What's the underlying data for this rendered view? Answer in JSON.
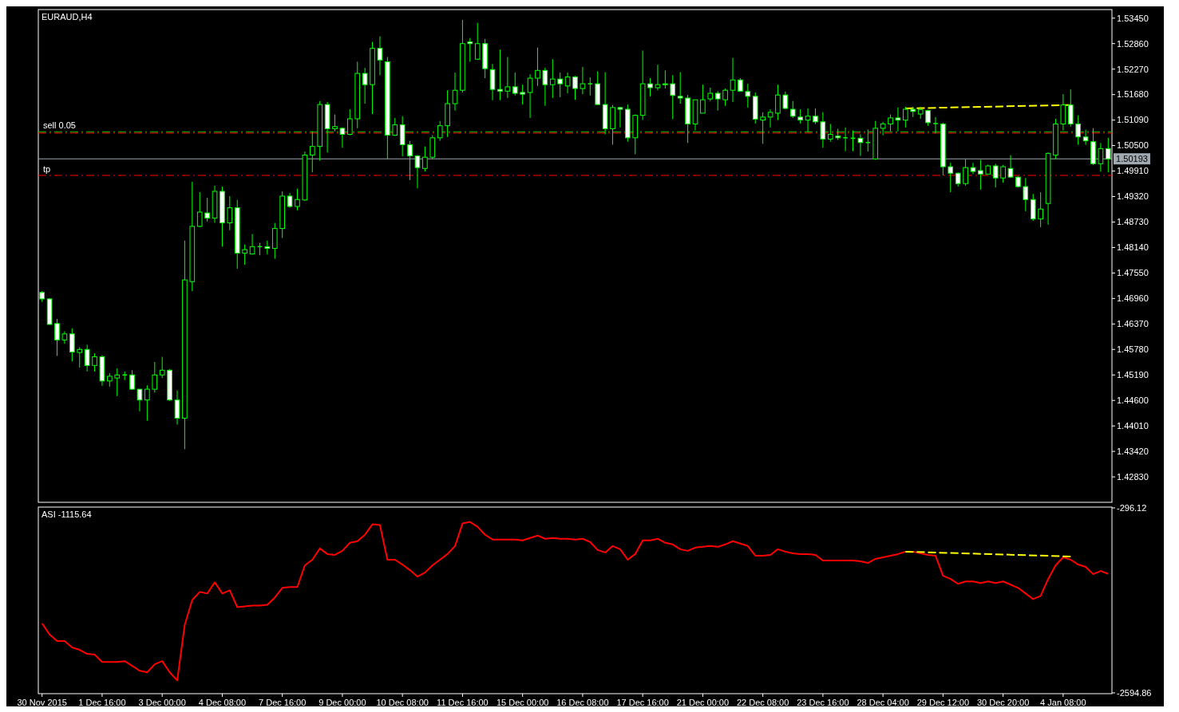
{
  "chart_data": [
    {
      "type": "candlestick",
      "title": "EURAUD,H4",
      "color": "#00ff00",
      "tick_labels": "y",
      "categories": [
        null,
        null,
        null,
        null,
        null,
        null,
        null,
        null,
        null,
        null,
        null,
        null,
        null,
        null,
        null,
        null,
        null,
        null,
        null,
        null,
        null,
        null,
        null,
        null,
        null,
        null,
        null,
        null,
        null,
        null,
        null,
        null,
        null,
        null,
        null,
        null,
        null,
        null,
        null,
        null,
        null,
        null,
        null,
        null,
        null,
        null,
        null,
        null,
        null,
        null,
        null,
        null,
        null,
        null,
        null,
        null,
        null,
        null,
        null,
        null,
        null,
        null,
        null,
        null,
        null,
        null,
        null,
        null,
        null,
        null,
        null,
        null,
        null,
        null,
        null,
        null,
        null,
        null,
        null,
        null,
        null,
        null,
        null,
        null,
        null,
        null,
        null,
        null,
        null,
        null,
        null,
        null,
        null,
        null,
        null,
        null,
        null,
        null,
        null,
        null,
        null,
        null,
        null,
        null,
        null,
        null,
        null,
        null,
        null,
        null,
        null,
        null,
        null,
        null,
        null,
        null,
        null,
        null,
        null,
        null,
        null,
        null,
        null,
        null,
        null,
        null,
        null,
        null,
        null,
        null,
        null,
        null,
        null,
        null,
        null,
        null,
        null,
        null,
        null,
        null,
        null,
        null,
        null
      ],
      "ohlc": [
        [
          1.471,
          1.4713,
          1.4688,
          1.4695
        ],
        [
          1.4695,
          1.4697,
          1.4635,
          1.4636
        ],
        [
          1.4638,
          1.4649,
          1.4563,
          1.46
        ],
        [
          1.46,
          1.462,
          1.4591,
          1.4614
        ],
        [
          1.4614,
          1.4627,
          1.455,
          1.4572
        ],
        [
          1.4571,
          1.4583,
          1.4536,
          1.4578
        ],
        [
          1.4578,
          1.4589,
          1.4527,
          1.4541
        ],
        [
          1.4541,
          1.4569,
          1.4527,
          1.4561
        ],
        [
          1.4561,
          1.4565,
          1.4494,
          1.4505
        ],
        [
          1.4505,
          1.4523,
          1.4492,
          1.4516
        ],
        [
          1.4512,
          1.4534,
          1.447,
          1.4519
        ],
        [
          1.4519,
          1.4527,
          1.4507,
          1.4519
        ],
        [
          1.4519,
          1.453,
          1.4485,
          1.4486
        ],
        [
          1.4486,
          1.4486,
          1.4435,
          1.4461
        ],
        [
          1.4461,
          1.4495,
          1.4413,
          1.4486
        ],
        [
          1.4486,
          1.4549,
          1.4478,
          1.4519
        ],
        [
          1.4519,
          1.4561,
          1.4512,
          1.453
        ],
        [
          1.453,
          1.4532,
          1.4459,
          1.4461
        ],
        [
          1.4461,
          1.4483,
          1.4404,
          1.4419
        ],
        [
          1.4419,
          1.483,
          1.4347,
          1.4739
        ],
        [
          1.4735,
          1.4966,
          1.4713,
          1.4863
        ],
        [
          1.4863,
          1.4942,
          1.4861,
          1.4896
        ],
        [
          1.4894,
          1.4929,
          1.4874,
          1.4882
        ],
        [
          1.4882,
          1.4957,
          1.4871,
          1.4944
        ],
        [
          1.4944,
          1.4955,
          1.4816,
          1.4871
        ],
        [
          1.4871,
          1.4933,
          1.4854,
          1.4906
        ],
        [
          1.4906,
          1.4924,
          1.4765,
          1.4801
        ],
        [
          1.4801,
          1.4821,
          1.4774,
          1.4809
        ],
        [
          1.4799,
          1.4845,
          1.4798,
          1.4816
        ],
        [
          1.4816,
          1.4825,
          1.4796,
          1.4816
        ],
        [
          1.4816,
          1.483,
          1.4798,
          1.4812
        ],
        [
          1.4812,
          1.4871,
          1.4788,
          1.4858
        ],
        [
          1.4858,
          1.4944,
          1.4836,
          1.4933
        ],
        [
          1.4933,
          1.494,
          1.4906,
          1.4909
        ],
        [
          1.4909,
          1.495,
          1.49,
          1.4925
        ],
        [
          1.4924,
          1.5036,
          1.4922,
          1.5028
        ],
        [
          1.5028,
          1.5083,
          1.4988,
          1.5048
        ],
        [
          1.5048,
          1.5153,
          1.5015,
          1.5145
        ],
        [
          1.5145,
          1.5151,
          1.5034,
          1.5089
        ],
        [
          1.5089,
          1.5122,
          1.5083,
          1.5094
        ],
        [
          1.509,
          1.5092,
          1.5045,
          1.5076
        ],
        [
          1.5076,
          1.5134,
          1.5074,
          1.5112
        ],
        [
          1.5112,
          1.5244,
          1.509,
          1.5217
        ],
        [
          1.5217,
          1.523,
          1.5147,
          1.5191
        ],
        [
          1.5191,
          1.529,
          1.5123,
          1.5275
        ],
        [
          1.5275,
          1.5303,
          1.5213,
          1.5248
        ],
        [
          1.5244,
          1.5255,
          1.5019,
          1.5074
        ],
        [
          1.5074,
          1.5114,
          1.5072,
          1.5098
        ],
        [
          1.5098,
          1.5118,
          1.5025,
          1.5052
        ],
        [
          1.5052,
          1.5061,
          1.497,
          1.5026
        ],
        [
          1.5026,
          1.5028,
          1.4951,
          1.4999
        ],
        [
          1.4997,
          1.5048,
          1.499,
          1.5023
        ],
        [
          1.5023,
          1.5074,
          1.5019,
          1.5068
        ],
        [
          1.5068,
          1.5107,
          1.5061,
          1.5096
        ],
        [
          1.5096,
          1.5178,
          1.507,
          1.5147
        ],
        [
          1.5147,
          1.5219,
          1.5131,
          1.5178
        ],
        [
          1.5178,
          1.5341,
          1.5173,
          1.5286
        ],
        [
          1.529,
          1.5299,
          1.5244,
          1.5286
        ],
        [
          1.525,
          1.5334,
          1.5248,
          1.5286
        ],
        [
          1.5286,
          1.5297,
          1.5206,
          1.5228
        ],
        [
          1.5226,
          1.5239,
          1.5155,
          1.518
        ],
        [
          1.518,
          1.5272,
          1.5155,
          1.5176
        ],
        [
          1.5176,
          1.5255,
          1.516,
          1.5186
        ],
        [
          1.5186,
          1.5219,
          1.5166,
          1.5171
        ],
        [
          1.5173,
          1.5191,
          1.5145,
          1.5169
        ],
        [
          1.5173,
          1.5215,
          1.5114,
          1.5206
        ],
        [
          1.5206,
          1.5277,
          1.5188,
          1.5224
        ],
        [
          1.5224,
          1.523,
          1.5142,
          1.5191
        ],
        [
          1.5191,
          1.525,
          1.516,
          1.5204
        ],
        [
          1.5204,
          1.5219,
          1.5162,
          1.5193
        ],
        [
          1.5188,
          1.5219,
          1.5171,
          1.5209
        ],
        [
          1.5209,
          1.5211,
          1.5156,
          1.5182
        ],
        [
          1.5182,
          1.5232,
          1.5169,
          1.5193
        ],
        [
          1.5193,
          1.5208,
          1.5166,
          1.5193
        ],
        [
          1.5193,
          1.5222,
          1.5144,
          1.5145
        ],
        [
          1.5145,
          1.522,
          1.5076,
          1.5089
        ],
        [
          1.5089,
          1.5144,
          1.5052,
          1.5138
        ],
        [
          1.5138,
          1.514,
          1.5092,
          1.5134
        ],
        [
          1.5134,
          1.5145,
          1.5059,
          1.5068
        ],
        [
          1.5068,
          1.5122,
          1.503,
          1.512
        ],
        [
          1.512,
          1.527,
          1.5109,
          1.5193
        ],
        [
          1.5193,
          1.5206,
          1.5164,
          1.5184
        ],
        [
          1.5184,
          1.5237,
          1.5178,
          1.5191
        ],
        [
          1.5193,
          1.5224,
          1.5182,
          1.5191
        ],
        [
          1.5193,
          1.5213,
          1.5111,
          1.5166
        ],
        [
          1.5164,
          1.522,
          1.5147,
          1.516
        ],
        [
          1.516,
          1.5167,
          1.5056,
          1.51
        ],
        [
          1.51,
          1.5156,
          1.5085,
          1.5156
        ],
        [
          1.5125,
          1.5191,
          1.5125,
          1.5156
        ],
        [
          1.5158,
          1.5184,
          1.5153,
          1.5171
        ],
        [
          1.5171,
          1.5176,
          1.5131,
          1.5158
        ],
        [
          1.5156,
          1.5182,
          1.5142,
          1.5178
        ],
        [
          1.5178,
          1.5253,
          1.5151,
          1.5202
        ],
        [
          1.5202,
          1.5206,
          1.5175,
          1.5176
        ],
        [
          1.5175,
          1.5193,
          1.5138,
          1.5164
        ],
        [
          1.5164,
          1.5173,
          1.5101,
          1.5111
        ],
        [
          1.5109,
          1.5127,
          1.5054,
          1.5116
        ],
        [
          1.5116,
          1.5134,
          1.5092,
          1.5127
        ],
        [
          1.5125,
          1.5191,
          1.5109,
          1.5167
        ],
        [
          1.5167,
          1.5175,
          1.5134,
          1.5136
        ],
        [
          1.5134,
          1.5153,
          1.5114,
          1.5118
        ],
        [
          1.5116,
          1.5134,
          1.5101,
          1.5109
        ],
        [
          1.5109,
          1.5136,
          1.5081,
          1.5118
        ],
        [
          1.5118,
          1.5136,
          1.51,
          1.5105
        ],
        [
          1.5105,
          1.5127,
          1.5045,
          1.5065
        ],
        [
          1.5065,
          1.51,
          1.5059,
          1.5076
        ],
        [
          1.5072,
          1.5089,
          1.5063,
          1.5068
        ],
        [
          1.5068,
          1.5092,
          1.5037,
          1.5068
        ],
        [
          1.5067,
          1.5085,
          1.5037,
          1.5067
        ],
        [
          1.5067,
          1.5076,
          1.5026,
          1.5057
        ],
        [
          1.5057,
          1.5087,
          1.5036,
          1.5057
        ],
        [
          1.5019,
          1.5107,
          1.5017,
          1.509
        ],
        [
          1.509,
          1.5105,
          1.5074,
          1.51
        ],
        [
          1.51,
          1.5122,
          1.5083,
          1.5114
        ],
        [
          1.5114,
          1.5138,
          1.5083,
          1.5109
        ],
        [
          1.5109,
          1.514,
          1.5092,
          1.5134
        ],
        [
          1.5134,
          1.514,
          1.5116,
          1.5129
        ],
        [
          1.5123,
          1.514,
          1.5112,
          1.5133
        ],
        [
          1.5131,
          1.5133,
          1.5096,
          1.5103
        ],
        [
          1.5101,
          1.5116,
          1.5078,
          1.5101
        ],
        [
          1.51,
          1.5103,
          1.4981,
          1.5001
        ],
        [
          1.5001,
          1.501,
          1.4942,
          1.4986
        ],
        [
          1.4986,
          1.4988,
          1.4955,
          1.4962
        ],
        [
          1.4962,
          1.5019,
          1.4957,
          1.4999
        ],
        [
          1.4999,
          1.501,
          1.4984,
          1.499
        ],
        [
          1.4992,
          1.5017,
          1.4948,
          1.4984
        ],
        [
          1.4984,
          1.5006,
          1.4984,
          1.5003
        ],
        [
          1.5003,
          1.5008,
          1.4953,
          1.4975
        ],
        [
          1.4975,
          1.5005,
          1.4964,
          1.5001
        ],
        [
          1.4997,
          1.5028,
          1.4975,
          1.4977
        ],
        [
          1.4977,
          1.4979,
          1.4953,
          1.4955
        ],
        [
          1.4955,
          1.4975,
          1.4898,
          1.4925
        ],
        [
          1.4925,
          1.4938,
          1.4876,
          1.488
        ],
        [
          1.488,
          1.4942,
          1.4861,
          1.4903
        ],
        [
          1.4916,
          1.5034,
          1.4867,
          1.5032
        ],
        [
          1.5028,
          1.5112,
          1.5019,
          1.51
        ],
        [
          1.51,
          1.5169,
          1.5085,
          1.5144
        ],
        [
          1.5144,
          1.518,
          1.5094,
          1.51
        ],
        [
          1.51,
          1.512,
          1.5052,
          1.507
        ],
        [
          1.507,
          1.5087,
          1.5052,
          1.5061
        ],
        [
          1.5059,
          1.509,
          1.5005,
          1.5008
        ],
        [
          1.5008,
          1.5056,
          1.499,
          1.5043
        ],
        [
          1.5043,
          1.5068,
          1.4988,
          1.5019
        ]
      ],
      "series": [
        {
          "type": "line",
          "color": "#ffff00",
          "line_style": "dashed",
          "values": [
            null,
            null,
            null,
            null,
            null,
            null,
            null,
            null,
            null,
            null,
            null,
            null,
            null,
            null,
            null,
            null,
            null,
            null,
            null,
            null,
            null,
            null,
            null,
            null,
            null,
            null,
            null,
            null,
            null,
            null,
            null,
            null,
            null,
            null,
            null,
            null,
            null,
            null,
            null,
            null,
            null,
            null,
            null,
            null,
            null,
            null,
            null,
            null,
            null,
            null,
            null,
            null,
            null,
            null,
            null,
            null,
            null,
            null,
            null,
            null,
            null,
            null,
            null,
            null,
            null,
            null,
            null,
            null,
            null,
            null,
            null,
            null,
            null,
            null,
            null,
            null,
            null,
            null,
            null,
            null,
            null,
            null,
            null,
            null,
            null,
            null,
            null,
            null,
            null,
            null,
            null,
            null,
            null,
            null,
            null,
            null,
            null,
            null,
            null,
            null,
            null,
            null,
            null,
            null,
            null,
            null,
            null,
            null,
            null,
            null,
            null,
            null,
            null,
            null,
            null,
            1.5136,
            null,
            null,
            null,
            null,
            null,
            null,
            null,
            null,
            null,
            null,
            null,
            null,
            null,
            null,
            null,
            null,
            null,
            null,
            null,
            null,
            null,
            1.5144,
            null,
            null,
            null,
            null,
            null
          ]
        }
      ],
      "ylim": [
        1.4226,
        1.5363
      ],
      "yticks": [
        {
          "value": 1.5345,
          "label": "1.53450"
        },
        {
          "value": 1.5286,
          "label": "1.52860"
        },
        {
          "value": 1.5227,
          "label": "1.52270"
        },
        {
          "value": 1.5168,
          "label": "1.51680"
        },
        {
          "value": 1.5109,
          "label": "1.51090"
        },
        {
          "value": 1.505,
          "label": "1.50500"
        },
        {
          "value": 1.4991,
          "label": "1.49910"
        },
        {
          "value": 1.4932,
          "label": "1.49320"
        },
        {
          "value": 1.4873,
          "label": "1.48730"
        },
        {
          "value": 1.4814,
          "label": "1.48140"
        },
        {
          "value": 1.4755,
          "label": "1.47550"
        },
        {
          "value": 1.4696,
          "label": "1.46960"
        },
        {
          "value": 1.4637,
          "label": "1.46370"
        },
        {
          "value": 1.4578,
          "label": "1.45780"
        },
        {
          "value": 1.4519,
          "label": "1.45190"
        },
        {
          "value": 1.446,
          "label": "1.44600"
        },
        {
          "value": 1.4401,
          "label": "1.44010"
        },
        {
          "value": 1.4342,
          "label": "1.43420"
        },
        {
          "value": 1.4283,
          "label": "1.42830"
        }
      ],
      "ref_lines": [
        {
          "axis": "y",
          "value": 1.5082,
          "label": "sell 0.05",
          "color": "#00c000",
          "line_style": "dashed"
        },
        {
          "axis": "y",
          "value": 1.5079,
          "color": "#ff0000",
          "line_style": "dashed"
        },
        {
          "axis": "y",
          "value": 1.4981,
          "label": "tp",
          "color": "#ff0000",
          "line_style": "dashed"
        },
        {
          "axis": "y",
          "value": 1.50193,
          "label": "1.50193",
          "color": "#a0a8b0",
          "line_style": "solid"
        }
      ]
    },
    {
      "type": "line",
      "title": "ASI -1115.64",
      "categories": [
        "30 Nov 2015",
        null,
        null,
        null,
        null,
        null,
        null,
        null,
        "1 Dec 16:00",
        null,
        null,
        null,
        null,
        null,
        null,
        null,
        "3 Dec 00:00",
        null,
        null,
        null,
        null,
        null,
        null,
        null,
        "4 Dec 08:00",
        null,
        null,
        null,
        null,
        null,
        null,
        null,
        "7 Dec 16:00",
        null,
        null,
        null,
        null,
        null,
        null,
        null,
        "9 Dec 00:00",
        null,
        null,
        null,
        null,
        null,
        null,
        null,
        "10 Dec 08:00",
        null,
        null,
        null,
        null,
        null,
        null,
        null,
        "11 Dec 16:00",
        null,
        null,
        null,
        null,
        null,
        null,
        null,
        "15 Dec 00:00",
        null,
        null,
        null,
        null,
        null,
        null,
        null,
        "16 Dec 08:00",
        null,
        null,
        null,
        null,
        null,
        null,
        null,
        "17 Dec 16:00",
        null,
        null,
        null,
        null,
        null,
        null,
        null,
        "21 Dec 00:00",
        null,
        null,
        null,
        null,
        null,
        null,
        null,
        "22 Dec 08:00",
        null,
        null,
        null,
        null,
        null,
        null,
        null,
        "23 Dec 16:00",
        null,
        null,
        null,
        null,
        null,
        null,
        null,
        "28 Dec 04:00",
        null,
        null,
        null,
        null,
        null,
        null,
        null,
        "29 Dec 12:00",
        null,
        null,
        null,
        null,
        null,
        null,
        null,
        "30 Dec 20:00",
        null,
        null,
        null,
        null,
        null,
        null,
        null,
        "4 Jan 08:00",
        null,
        null,
        null,
        null,
        null,
        null
      ],
      "series": [
        {
          "color": "#ff0000",
          "line_style": "solid",
          "values": [
            -1730,
            -1870,
            -1950,
            -1950,
            -2030,
            -2060,
            -2110,
            -2120,
            -2210,
            -2210,
            -2210,
            -2200,
            -2260,
            -2320,
            -2340,
            -2240,
            -2200,
            -2340,
            -2440,
            -1750,
            -1440,
            -1340,
            -1360,
            -1220,
            -1360,
            -1320,
            -1530,
            -1520,
            -1510,
            -1510,
            -1500,
            -1410,
            -1290,
            -1280,
            -1280,
            -1010,
            -940,
            -800,
            -870,
            -880,
            -830,
            -730,
            -710,
            -630,
            -500,
            -510,
            -940,
            -940,
            -1000,
            -1070,
            -1150,
            -1100,
            -1010,
            -940,
            -870,
            -770,
            -490,
            -470,
            -530,
            -630,
            -690,
            -690,
            -690,
            -690,
            -700,
            -670,
            -640,
            -680,
            -670,
            -680,
            -680,
            -690,
            -680,
            -720,
            -820,
            -850,
            -770,
            -810,
            -940,
            -870,
            -700,
            -700,
            -680,
            -730,
            -750,
            -810,
            -830,
            -790,
            -780,
            -770,
            -780,
            -750,
            -710,
            -740,
            -770,
            -890,
            -890,
            -880,
            -810,
            -840,
            -860,
            -870,
            -870,
            -880,
            -950,
            -950,
            -950,
            -950,
            -950,
            -960,
            -980,
            -930,
            -910,
            -890,
            -870,
            -840,
            -840,
            -860,
            -880,
            -890,
            -1140,
            -1180,
            -1240,
            -1210,
            -1210,
            -1230,
            -1210,
            -1230,
            -1210,
            -1250,
            -1290,
            -1360,
            -1430,
            -1390,
            -1180,
            -1010,
            -910,
            -940,
            -1000,
            -1030,
            -1120,
            -1080,
            -1115.64
          ]
        },
        {
          "color": "#ffff00",
          "line_style": "dashed",
          "values": [
            null,
            null,
            null,
            null,
            null,
            null,
            null,
            null,
            null,
            null,
            null,
            null,
            null,
            null,
            null,
            null,
            null,
            null,
            null,
            null,
            null,
            null,
            null,
            null,
            null,
            null,
            null,
            null,
            null,
            null,
            null,
            null,
            null,
            null,
            null,
            null,
            null,
            null,
            null,
            null,
            null,
            null,
            null,
            null,
            null,
            null,
            null,
            null,
            null,
            null,
            null,
            null,
            null,
            null,
            null,
            null,
            null,
            null,
            null,
            null,
            null,
            null,
            null,
            null,
            null,
            null,
            null,
            null,
            null,
            null,
            null,
            null,
            null,
            null,
            null,
            null,
            null,
            null,
            null,
            null,
            null,
            null,
            null,
            null,
            null,
            null,
            null,
            null,
            null,
            null,
            null,
            null,
            null,
            null,
            null,
            null,
            null,
            null,
            null,
            null,
            null,
            null,
            null,
            null,
            null,
            null,
            null,
            null,
            null,
            null,
            null,
            null,
            null,
            null,
            null,
            -840,
            null,
            null,
            null,
            null,
            null,
            null,
            null,
            null,
            null,
            null,
            null,
            null,
            null,
            null,
            null,
            null,
            null,
            null,
            null,
            null,
            null,
            -900,
            null,
            null,
            null,
            null,
            null
          ]
        }
      ],
      "ylim": [
        -2594.86,
        -296.12
      ],
      "yticks": [
        -296.12,
        -2594.86
      ]
    }
  ]
}
